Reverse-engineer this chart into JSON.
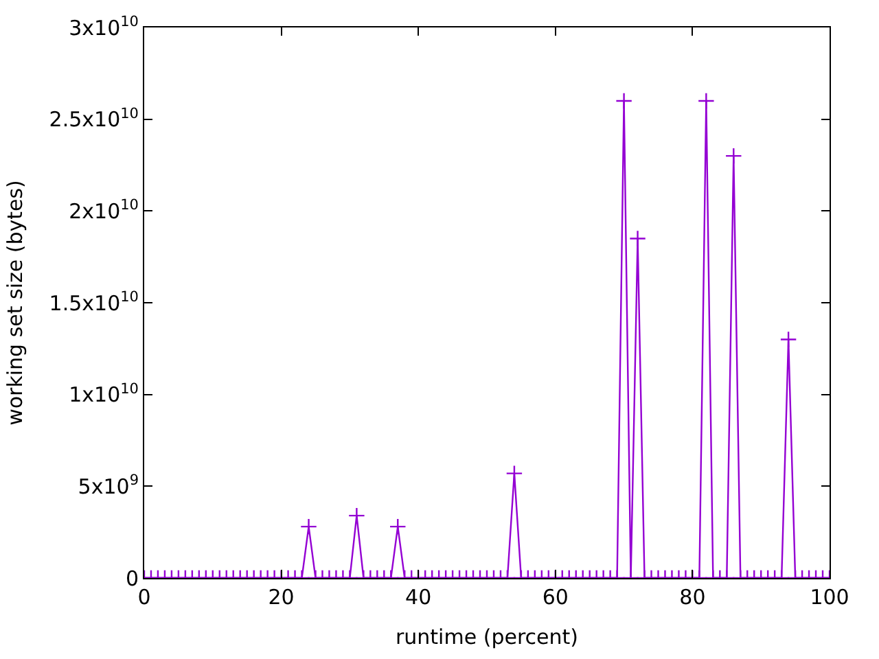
{
  "chart_data": {
    "type": "line",
    "xlabel": "runtime (percent)",
    "ylabel": "working set size (bytes)",
    "x": [
      0,
      1,
      2,
      3,
      4,
      5,
      6,
      7,
      8,
      9,
      10,
      11,
      12,
      13,
      14,
      15,
      16,
      17,
      18,
      19,
      20,
      21,
      22,
      23,
      24,
      25,
      26,
      27,
      28,
      29,
      30,
      31,
      32,
      33,
      34,
      35,
      36,
      37,
      38,
      39,
      40,
      41,
      42,
      43,
      44,
      45,
      46,
      47,
      48,
      49,
      50,
      51,
      52,
      53,
      54,
      55,
      56,
      57,
      58,
      59,
      60,
      61,
      62,
      63,
      64,
      65,
      66,
      67,
      68,
      69,
      70,
      71,
      72,
      73,
      74,
      75,
      76,
      77,
      78,
      79,
      80,
      81,
      82,
      83,
      84,
      85,
      86,
      87,
      88,
      89,
      90,
      91,
      92,
      93,
      94,
      95,
      96,
      97,
      98,
      99,
      100
    ],
    "series": [
      {
        "color": "#9400d3",
        "values": [
          0,
          0,
          0,
          0,
          0,
          0,
          0,
          0,
          0,
          0,
          0,
          0,
          0,
          0,
          0,
          0,
          0,
          0,
          0,
          0,
          0,
          0,
          0,
          0,
          2800000000,
          0,
          0,
          0,
          0,
          0,
          0,
          3400000000,
          0,
          0,
          0,
          0,
          0,
          2800000000,
          0,
          0,
          0,
          0,
          0,
          0,
          0,
          0,
          0,
          0,
          0,
          0,
          0,
          0,
          0,
          0,
          5700000000,
          0,
          0,
          0,
          0,
          0,
          0,
          0,
          0,
          0,
          0,
          0,
          0,
          0,
          0,
          0,
          26000000000,
          0,
          18500000000,
          0,
          0,
          0,
          0,
          0,
          0,
          0,
          0,
          0,
          26000000000,
          0,
          0,
          0,
          23000000000,
          0,
          0,
          0,
          0,
          0,
          0,
          0,
          13000000000,
          0,
          0,
          0,
          0,
          0,
          0
        ]
      }
    ],
    "xlim": [
      0,
      100
    ],
    "xticks": [
      0,
      20,
      40,
      60,
      80,
      100
    ],
    "ylim": [
      0,
      30000000000
    ],
    "yticks": [
      0,
      {
        "value": 5000000000,
        "label": "5x10$^{9}$"
      },
      {
        "value": 10000000000,
        "label": "1x10$^{10}$"
      },
      {
        "value": 15000000000,
        "label": "1.5x10$^{10}$"
      },
      {
        "value": 20000000000,
        "label": "2x10$^{10}$"
      },
      {
        "value": 25000000000,
        "label": "2.5x10$^{10}$"
      },
      {
        "value": 30000000000,
        "label": "3x10$^{10}$"
      }
    ],
    "marker": "cross",
    "line_style": "solid"
  }
}
